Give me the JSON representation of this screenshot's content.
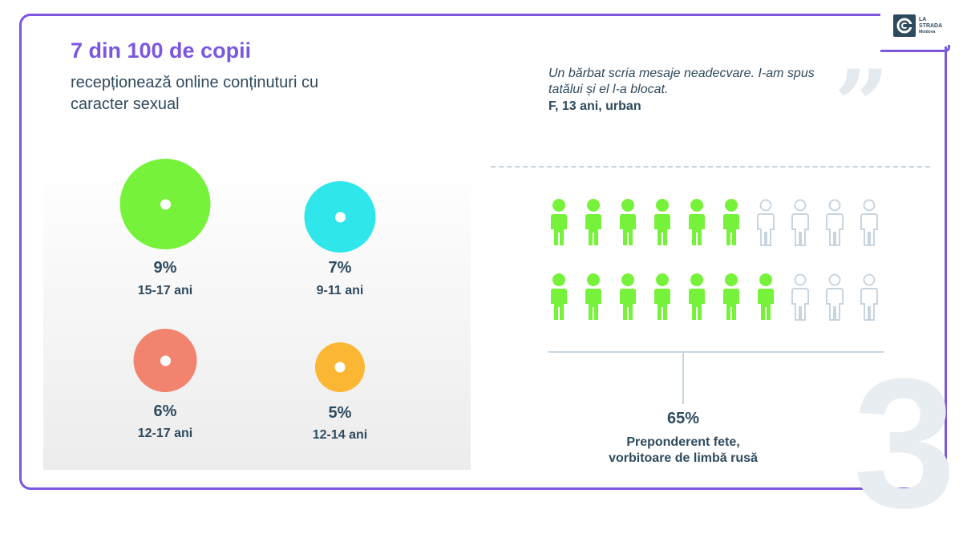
{
  "brand": {
    "logo_line1": "LA",
    "logo_line2": "STRADA",
    "logo_line3": "Moldova"
  },
  "header": {
    "title": "7 din 100 de copii",
    "subtitle": "recepționează online conținuturi cu caracter sexual"
  },
  "stats": [
    {
      "value": "9%",
      "age": "15-17 ani",
      "color": "#76f23a"
    },
    {
      "value": "7%",
      "age": "9-11 ani",
      "color": "#2fe6ea"
    },
    {
      "value": "6%",
      "age": "12-17 ani",
      "color": "#f2836f"
    },
    {
      "value": "5%",
      "age": "12-14 ani",
      "color": "#fbb733"
    }
  ],
  "quote": {
    "text": "Un bărbat scria mesaje neadecvare. I-am spus tatălui și el l-a blocat.",
    "author": "F, 13 ani, urban"
  },
  "people_chart": {
    "total_per_row": 10,
    "rows_filled": [
      6,
      7
    ],
    "filled_color": "#76f23a",
    "empty_color": "#c7d5e0"
  },
  "share": {
    "value": "65%",
    "description_line1": "Preponderent fete,",
    "description_line2": "vorbitoare de limbă rusă"
  },
  "page_number": "3",
  "colors": {
    "accent": "#7b57e0",
    "text": "#2e4a5e"
  }
}
